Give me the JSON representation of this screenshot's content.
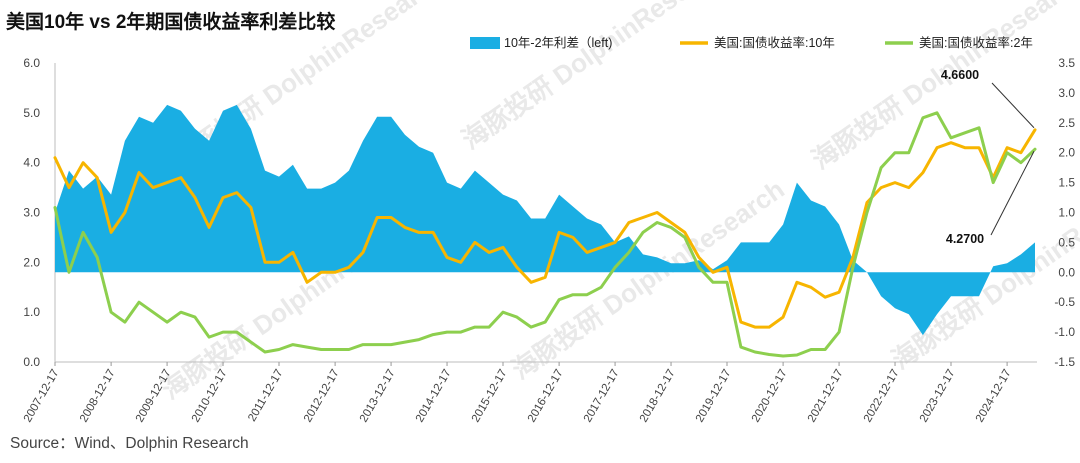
{
  "chart_data": {
    "type": "area+line",
    "title": "美国10年 vs 2年期国债收益率利差比较",
    "legend": [
      {
        "name": "10年-2年利差（left)",
        "color": "#1aaee3",
        "kind": "area"
      },
      {
        "name": "美国:国债收益率:10年",
        "color": "#f7b500",
        "kind": "line"
      },
      {
        "name": "美国:国债收益率:2年",
        "color": "#8dcf4e",
        "kind": "line"
      }
    ],
    "left_axis": {
      "range": [
        0,
        6
      ],
      "ticks": [
        "0.0",
        "1.0",
        "2.0",
        "3.0",
        "4.0",
        "5.0",
        "6.0"
      ]
    },
    "right_axis": {
      "range": [
        -1.5,
        3.5
      ],
      "ticks": [
        "-1.5",
        "-1.0",
        "-0.5",
        "0.0",
        "0.5",
        "1.0",
        "1.5",
        "2.0",
        "2.5",
        "3.0",
        "3.5"
      ]
    },
    "x_range": [
      "2007-12-17",
      "2025-06-30"
    ],
    "x_ticks": [
      "2007-12-17",
      "2008-12-17",
      "2009-12-17",
      "2010-12-17",
      "2011-12-17",
      "2012-12-17",
      "2013-12-17",
      "2014-12-17",
      "2015-12-17",
      "2016-12-17",
      "2017-12-17",
      "2018-12-17",
      "2019-12-17",
      "2020-12-17",
      "2021-12-17",
      "2022-12-17",
      "2023-12-17",
      "2024-12-17"
    ],
    "grid": false,
    "legend_position": "top",
    "dates": [
      "2007-12-17",
      "2008-03-17",
      "2008-06-17",
      "2008-09-17",
      "2008-12-17",
      "2009-03-17",
      "2009-06-17",
      "2009-09-17",
      "2009-12-17",
      "2010-03-17",
      "2010-06-17",
      "2010-09-17",
      "2010-12-17",
      "2011-03-17",
      "2011-06-17",
      "2011-09-17",
      "2011-12-17",
      "2012-03-17",
      "2012-06-17",
      "2012-09-17",
      "2012-12-17",
      "2013-03-17",
      "2013-06-17",
      "2013-09-17",
      "2013-12-17",
      "2014-03-17",
      "2014-06-17",
      "2014-09-17",
      "2014-12-17",
      "2015-03-17",
      "2015-06-17",
      "2015-09-17",
      "2015-12-17",
      "2016-03-17",
      "2016-06-17",
      "2016-09-17",
      "2016-12-17",
      "2017-03-17",
      "2017-06-17",
      "2017-09-17",
      "2017-12-17",
      "2018-03-17",
      "2018-06-17",
      "2018-09-17",
      "2018-12-17",
      "2019-03-17",
      "2019-06-17",
      "2019-09-17",
      "2019-12-17",
      "2020-03-17",
      "2020-06-17",
      "2020-09-17",
      "2020-12-17",
      "2021-03-17",
      "2021-06-17",
      "2021-09-17",
      "2021-12-17",
      "2022-03-17",
      "2022-06-17",
      "2022-09-17",
      "2022-12-17",
      "2023-03-17",
      "2023-06-17",
      "2023-09-17",
      "2023-12-17",
      "2024-03-17",
      "2024-06-17",
      "2024-09-17",
      "2024-12-17",
      "2025-03-17",
      "2025-06-17"
    ],
    "series": [
      {
        "name": "10年-2年利差（left)",
        "axis": "right",
        "values": [
          1.0,
          1.7,
          1.4,
          1.6,
          1.3,
          2.2,
          2.6,
          2.5,
          2.8,
          2.7,
          2.4,
          2.2,
          2.7,
          2.8,
          2.4,
          1.7,
          1.6,
          1.8,
          1.4,
          1.4,
          1.5,
          1.7,
          2.2,
          2.6,
          2.6,
          2.3,
          2.1,
          2.0,
          1.5,
          1.4,
          1.7,
          1.5,
          1.3,
          1.2,
          0.9,
          0.9,
          1.3,
          1.1,
          0.9,
          0.8,
          0.5,
          0.6,
          0.3,
          0.25,
          0.15,
          0.15,
          0.2,
          0.05,
          0.2,
          0.5,
          0.5,
          0.5,
          0.8,
          1.5,
          1.2,
          1.1,
          0.8,
          0.2,
          0.0,
          -0.4,
          -0.6,
          -0.7,
          -1.05,
          -0.7,
          -0.4,
          -0.4,
          -0.4,
          0.1,
          0.15,
          0.3,
          0.5
        ]
      },
      {
        "name": "美国:国债收益率:10年",
        "axis": "left",
        "values": [
          4.1,
          3.5,
          4.0,
          3.7,
          2.6,
          3.0,
          3.8,
          3.5,
          3.6,
          3.7,
          3.3,
          2.7,
          3.3,
          3.4,
          3.1,
          2.0,
          2.0,
          2.2,
          1.6,
          1.8,
          1.8,
          1.9,
          2.2,
          2.9,
          2.9,
          2.7,
          2.6,
          2.6,
          2.1,
          2.0,
          2.4,
          2.2,
          2.3,
          1.9,
          1.6,
          1.7,
          2.6,
          2.5,
          2.2,
          2.3,
          2.4,
          2.8,
          2.9,
          3.0,
          2.8,
          2.6,
          2.1,
          1.8,
          1.9,
          0.8,
          0.7,
          0.7,
          0.9,
          1.6,
          1.5,
          1.3,
          1.4,
          2.1,
          3.2,
          3.5,
          3.6,
          3.5,
          3.8,
          4.3,
          4.4,
          4.3,
          4.3,
          3.7,
          4.3,
          4.2,
          4.66
        ]
      },
      {
        "name": "美国:国债收益率:2年",
        "axis": "left",
        "values": [
          3.1,
          1.8,
          2.6,
          2.1,
          1.0,
          0.8,
          1.2,
          1.0,
          0.8,
          1.0,
          0.9,
          0.5,
          0.6,
          0.6,
          0.4,
          0.2,
          0.25,
          0.35,
          0.3,
          0.25,
          0.25,
          0.25,
          0.35,
          0.35,
          0.35,
          0.4,
          0.45,
          0.55,
          0.6,
          0.6,
          0.7,
          0.7,
          1.0,
          0.9,
          0.7,
          0.8,
          1.25,
          1.35,
          1.35,
          1.5,
          1.9,
          2.2,
          2.6,
          2.8,
          2.7,
          2.5,
          1.9,
          1.6,
          1.6,
          0.3,
          0.2,
          0.15,
          0.12,
          0.14,
          0.25,
          0.25,
          0.6,
          1.9,
          3.0,
          3.9,
          4.2,
          4.2,
          4.9,
          5.0,
          4.5,
          4.6,
          4.7,
          3.6,
          4.2,
          4.0,
          4.27
        ]
      }
    ],
    "annotations": [
      {
        "text": "4.6600",
        "series": "美国:国债收益率:10年"
      },
      {
        "text": "4.2700",
        "series": "美国:国债收益率:2年"
      }
    ]
  },
  "source": "Source：Wind、Dolphin Research",
  "watermark": "海豚投研 DolphinResearch"
}
